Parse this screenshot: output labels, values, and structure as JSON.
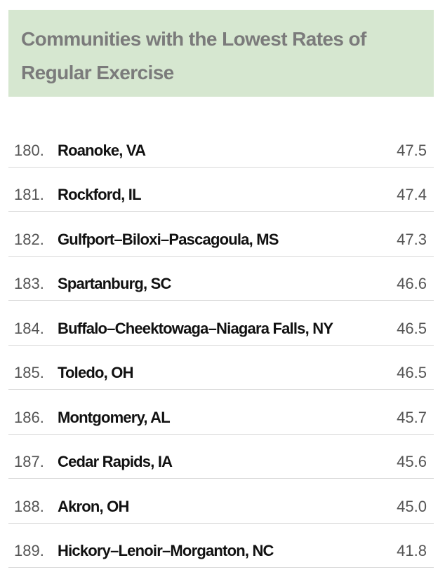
{
  "header": {
    "title": "Communities with the Lowest Rates of Regular Exercise"
  },
  "table": {
    "rows": [
      [
        "180.",
        "Roanoke, VA",
        "47.5"
      ],
      [
        "181.",
        "Rockford, IL",
        "47.4"
      ],
      [
        "182.",
        "Gulfport–Biloxi–Pascagoula, MS",
        "47.3"
      ],
      [
        "183.",
        "Spartanburg, SC",
        "46.6"
      ],
      [
        "184.",
        "Buffalo–Cheektowaga–Niagara Falls, NY",
        "46.5"
      ],
      [
        "185.",
        "Toledo, OH",
        "46.5"
      ],
      [
        "186.",
        "Montgomery, AL",
        "45.7"
      ],
      [
        "187.",
        "Cedar Rapids, IA",
        "45.6"
      ],
      [
        "188.",
        "Akron, OH",
        "45.0"
      ],
      [
        "189.",
        "Hickory–Lenoir–Morganton, NC",
        "41.8"
      ]
    ]
  }
}
